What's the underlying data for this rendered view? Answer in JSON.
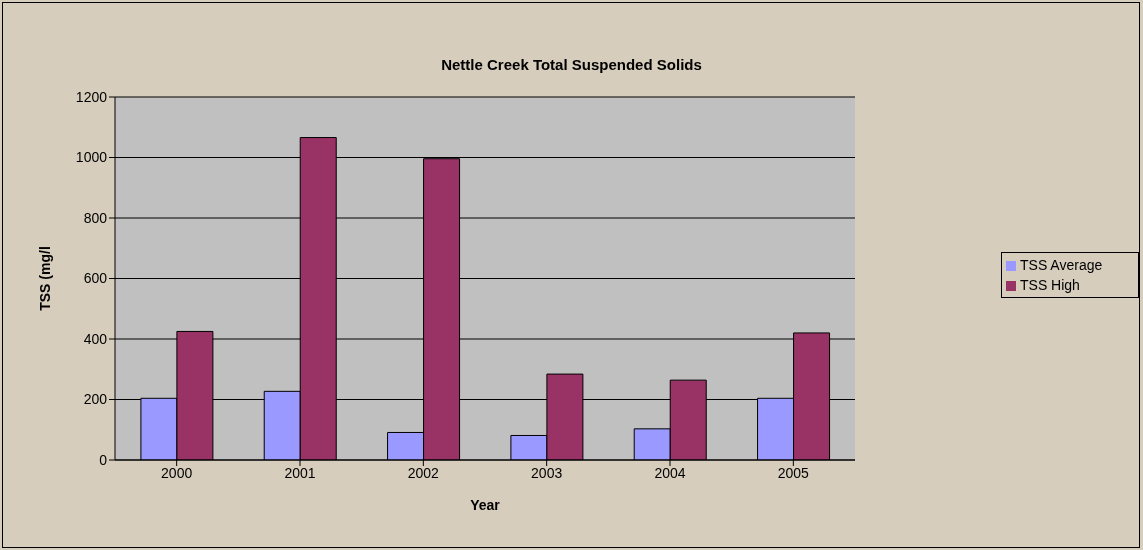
{
  "chart_data": {
    "type": "bar",
    "title": "Nettle Creek Total Suspended Solids",
    "xlabel": "Year",
    "ylabel": "TSS (mg/l",
    "categories": [
      "2000",
      "2001",
      "2002",
      "2003",
      "2004",
      "2005"
    ],
    "series": [
      {
        "name": "TSS Average",
        "color": "#9999ff",
        "values": [
          204,
          227,
          91,
          81,
          103,
          204
        ]
      },
      {
        "name": "TSS High",
        "color": "#993366",
        "values": [
          425,
          1066,
          996,
          284,
          264,
          420
        ]
      }
    ],
    "ylim": [
      0,
      1200
    ],
    "yticks": [
      0,
      200,
      400,
      600,
      800,
      1000,
      1200
    ],
    "grid": "y",
    "legend": "right"
  }
}
